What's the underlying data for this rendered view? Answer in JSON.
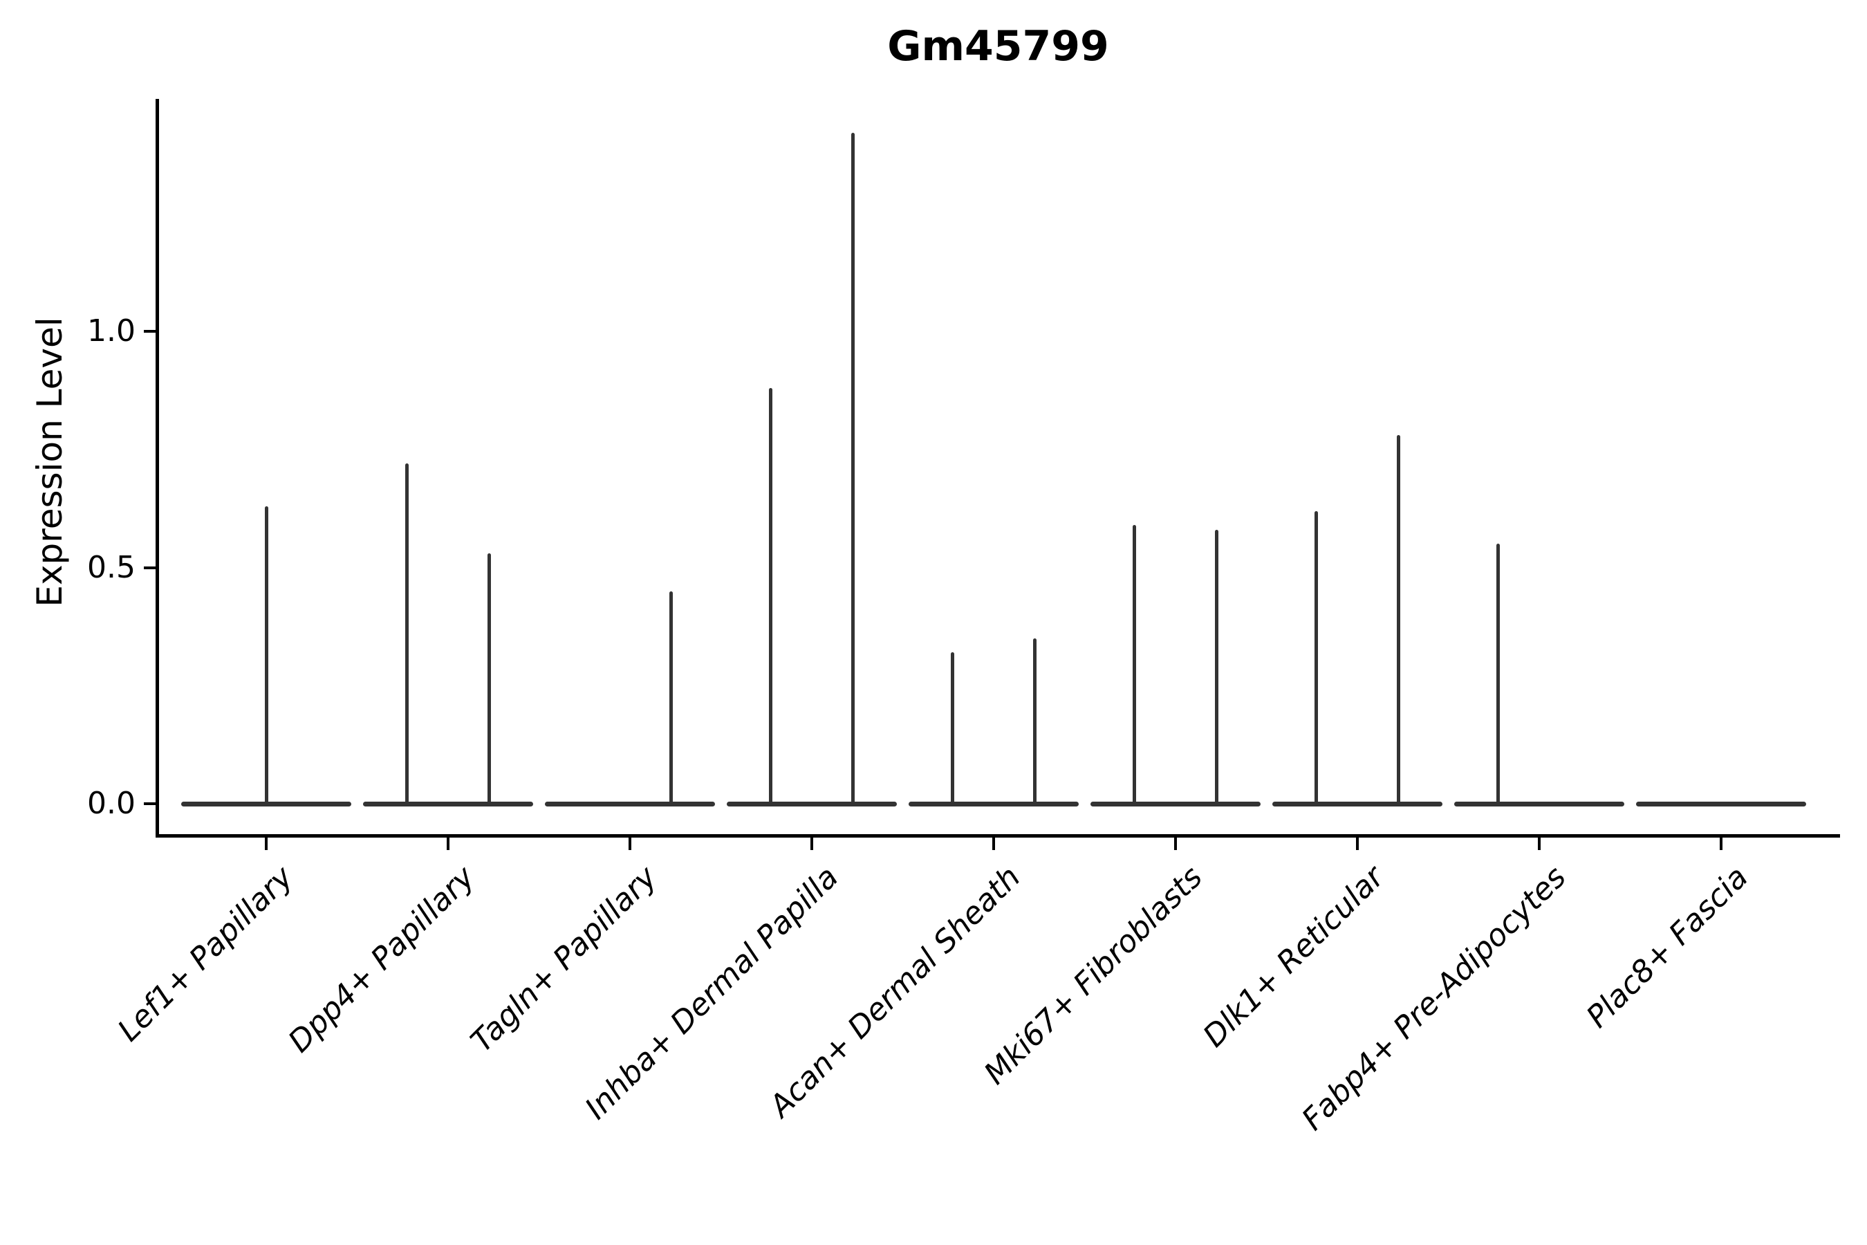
{
  "chart_data": {
    "type": "violin",
    "title": "Gm45799",
    "ylabel": "Expression Level",
    "xlabel": "",
    "yticks": [
      0.0,
      0.5,
      1.0
    ],
    "ytick_labels": [
      "0.0",
      "0.5",
      "1.0"
    ],
    "ylim": [
      -0.07,
      1.49
    ],
    "grid": false,
    "legend_position": "none",
    "axis_color": "#000000",
    "violin_color": "#333333",
    "categories": [
      "Lef1+ Papillary",
      "Dpp4+ Papillary",
      "Tagln+ Papillary",
      "Inhba+ Dermal Papilla",
      "Acan+ Dermal Sheath",
      "Mki67+ Fibroblasts",
      "Dlk1+ Reticular",
      "Fabp4+ Pre-Adipocytes",
      "Plac8+ Fascia"
    ],
    "violins": [
      {
        "category": "Lef1+ Papillary",
        "baseline_value": 0.0,
        "spikes": [
          {
            "offset": 0.0,
            "max": 0.63
          }
        ]
      },
      {
        "category": "Dpp4+ Papillary",
        "baseline_value": 0.0,
        "spikes": [
          {
            "offset": -0.225,
            "max": 0.72
          },
          {
            "offset": 0.225,
            "max": 0.53
          }
        ]
      },
      {
        "category": "Tagln+ Papillary",
        "baseline_value": 0.0,
        "spikes": [
          {
            "offset": 0.225,
            "max": 0.45
          }
        ]
      },
      {
        "category": "Inhba+ Dermal Papilla",
        "baseline_value": 0.0,
        "spikes": [
          {
            "offset": -0.225,
            "max": 0.88
          },
          {
            "offset": 0.225,
            "max": 1.42
          }
        ]
      },
      {
        "category": "Acan+ Dermal Sheath",
        "baseline_value": 0.0,
        "spikes": [
          {
            "offset": -0.225,
            "max": 0.32
          },
          {
            "offset": 0.225,
            "max": 0.35
          }
        ]
      },
      {
        "category": "Mki67+ Fibroblasts",
        "baseline_value": 0.0,
        "spikes": [
          {
            "offset": -0.225,
            "max": 0.59
          },
          {
            "offset": 0.225,
            "max": 0.58
          }
        ]
      },
      {
        "category": "Dlk1+ Reticular",
        "baseline_value": 0.0,
        "spikes": [
          {
            "offset": -0.225,
            "max": 0.62
          },
          {
            "offset": 0.225,
            "max": 0.78
          }
        ]
      },
      {
        "category": "Fabp4+ Pre-Adipocytes",
        "baseline_value": 0.0,
        "spikes": [
          {
            "offset": -0.225,
            "max": 0.55
          }
        ]
      },
      {
        "category": "Plac8+ Fascia",
        "baseline_value": 0.0,
        "spikes": []
      }
    ]
  }
}
